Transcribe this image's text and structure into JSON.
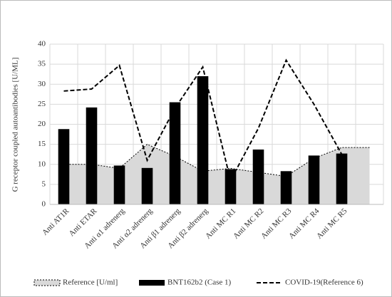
{
  "chart_data": {
    "type": "combo",
    "ylabel": "G receptor coupled autoantibodies [U/ML]",
    "categories": [
      "Anti AT1R",
      "Anti ETAR",
      "Anti α1 adrenerg",
      "Anti α2 adrenerg",
      "Anti β1 adrenerg",
      "Anti β2 adrenerg",
      "Anti MC R1",
      "Anti MC R2",
      "Anti MC R3",
      "Anti MC R4",
      "Anti MC R5",
      null
    ],
    "series": [
      {
        "name": "Reference [U/ml]",
        "type": "area",
        "color": "#d9d9d9",
        "values": [
          10,
          10,
          9,
          15,
          12,
          8.3,
          9,
          8,
          7,
          11.5,
          14.2,
          14.2
        ]
      },
      {
        "name": "BNT162b2 (Case 1)",
        "type": "bar",
        "color": "#000000",
        "values": [
          18.8,
          24.2,
          9.7,
          9.1,
          25.5,
          32,
          8.8,
          13.7,
          8.3,
          12.2,
          12.7,
          null
        ]
      },
      {
        "name": "COVID-19(Reference 6)",
        "type": "line",
        "color": "#000000",
        "values": [
          28.3,
          28.8,
          34.7,
          11,
          24,
          34.3,
          6,
          19,
          36,
          25,
          12.5,
          null
        ]
      }
    ],
    "ylim": [
      0,
      40
    ],
    "yticks": [
      0,
      5,
      10,
      15,
      20,
      25,
      30,
      35,
      40
    ],
    "grid": true,
    "legend": "bottom"
  }
}
